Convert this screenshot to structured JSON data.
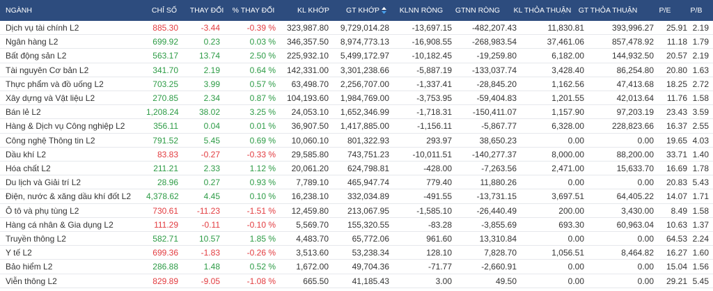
{
  "table": {
    "headers": [
      "NGÀNH",
      "CHỈ SỐ",
      "THAY ĐỔI",
      "% THAY ĐỔI",
      "KL KHỚP",
      "GT KHỚP",
      "KLNN RÒNG",
      "GTNN RÒNG",
      "KL THỎA THUẬN",
      "GT THỎA THUẬN",
      "P/E",
      "P/B"
    ],
    "rows": [
      [
        "Dịch vụ tài chính L2",
        "885.30",
        "-3.44",
        "-0.39 %",
        "323,987.80",
        "9,729,014.28",
        "-13,697.15",
        "-482,207.43",
        "11,830.81",
        "393,996.27",
        "25.91",
        "2.19"
      ],
      [
        "Ngân hàng L2",
        "699.92",
        "0.23",
        "0.03 %",
        "346,357.50",
        "8,974,773.13",
        "-16,908.55",
        "-268,983.54",
        "37,461.06",
        "857,478.92",
        "11.18",
        "1.79"
      ],
      [
        "Bất động sản L2",
        "563.17",
        "13.74",
        "2.50 %",
        "225,932.10",
        "5,499,172.97",
        "-10,182.45",
        "-19,259.80",
        "6,182.00",
        "144,932.50",
        "20.57",
        "2.19"
      ],
      [
        "Tài nguyên Cơ bản L2",
        "341.70",
        "2.19",
        "0.64 %",
        "142,331.00",
        "3,301,238.66",
        "-5,887.19",
        "-133,037.74",
        "3,428.40",
        "86,254.80",
        "20.80",
        "1.63"
      ],
      [
        "Thực phẩm và đồ uống L2",
        "703.25",
        "3.99",
        "0.57 %",
        "63,498.70",
        "2,256,707.00",
        "-1,337.41",
        "-28,845.20",
        "1,162.56",
        "47,413.68",
        "18.25",
        "2.72"
      ],
      [
        "Xây dựng và Vật liệu L2",
        "270.85",
        "2.34",
        "0.87 %",
        "104,193.60",
        "1,984,769.00",
        "-3,753.95",
        "-59,404.83",
        "1,201.55",
        "42,013.64",
        "11.76",
        "1.58"
      ],
      [
        "Bán lẻ L2",
        "1,208.24",
        "38.02",
        "3.25 %",
        "24,053.10",
        "1,652,346.99",
        "-1,718.31",
        "-150,411.07",
        "1,157.90",
        "97,203.19",
        "23.43",
        "3.59"
      ],
      [
        "Hàng & Dịch vụ Công nghiệp L2",
        "356.11",
        "0.04",
        "0.01 %",
        "36,907.50",
        "1,417,885.00",
        "-1,156.11",
        "-5,867.77",
        "6,328.00",
        "228,823.66",
        "16.37",
        "2.55"
      ],
      [
        "Công nghệ Thông tin L2",
        "791.52",
        "5.45",
        "0.69 %",
        "10,060.10",
        "801,322.93",
        "293.97",
        "38,650.23",
        "0.00",
        "0.00",
        "19.65",
        "4.03"
      ],
      [
        "Dầu khí L2",
        "83.83",
        "-0.27",
        "-0.33 %",
        "29,585.80",
        "743,751.23",
        "-10,011.51",
        "-140,277.37",
        "8,000.00",
        "88,200.00",
        "33.71",
        "1.40"
      ],
      [
        "Hóa chất L2",
        "211.21",
        "2.33",
        "1.12 %",
        "20,061.20",
        "624,798.81",
        "-428.00",
        "-7,263.56",
        "2,471.00",
        "15,633.70",
        "16.69",
        "1.78"
      ],
      [
        "Du lịch và Giải trí L2",
        "28.96",
        "0.27",
        "0.93 %",
        "7,789.10",
        "465,947.74",
        "779.40",
        "11,880.26",
        "0.00",
        "0.00",
        "20.83",
        "5.43"
      ],
      [
        "Điện, nước & xăng dầu khí đốt L2",
        "4,378.62",
        "4.45",
        "0.10 %",
        "16,238.10",
        "332,034.89",
        "-491.55",
        "-13,731.15",
        "3,697.51",
        "64,405.22",
        "14.07",
        "1.71"
      ],
      [
        "Ô tô và phụ tùng L2",
        "730.61",
        "-11.23",
        "-1.51 %",
        "12,459.80",
        "213,067.95",
        "-1,585.10",
        "-26,440.49",
        "200.00",
        "3,430.00",
        "8.49",
        "1.58"
      ],
      [
        "Hàng cá nhân & Gia dụng L2",
        "111.29",
        "-0.11",
        "-0.10 %",
        "5,569.70",
        "155,320.55",
        "-83.28",
        "-3,855.69",
        "693.30",
        "60,963.04",
        "10.63",
        "1.37"
      ],
      [
        "Truyền thông L2",
        "582.71",
        "10.57",
        "1.85 %",
        "4,483.70",
        "65,772.06",
        "961.60",
        "13,310.84",
        "0.00",
        "0.00",
        "64.53",
        "2.24"
      ],
      [
        "Y tế L2",
        "699.36",
        "-1.83",
        "-0.26 %",
        "3,513.60",
        "53,238.34",
        "128.10",
        "7,828.70",
        "1,056.51",
        "8,464.82",
        "16.27",
        "1.60"
      ],
      [
        "Bảo hiểm L2",
        "286.88",
        "1.48",
        "0.52 %",
        "1,672.00",
        "49,704.36",
        "-71.77",
        "-2,660.91",
        "0.00",
        "0.00",
        "15.04",
        "1.56"
      ],
      [
        "Viễn thông L2",
        "829.89",
        "-9.05",
        "-1.08 %",
        "665.50",
        "41,185.43",
        "3.00",
        "49.50",
        "0.00",
        "0.00",
        "29.21",
        "5.45"
      ]
    ]
  }
}
